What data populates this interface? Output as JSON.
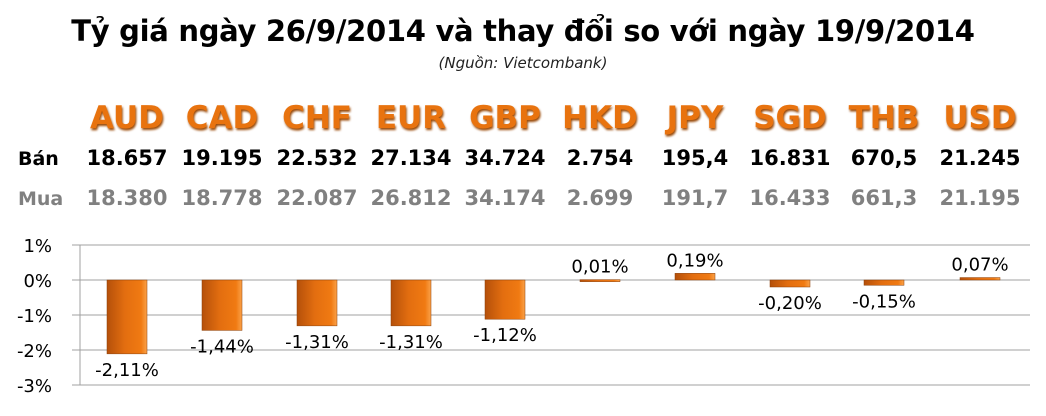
{
  "title": "Tỷ giá ngày 26/9/2014 và thay đổi so với ngày 19/9/2014",
  "source": "(Nguồn: Vietcombank)",
  "row_labels": {
    "sell": "Bán",
    "buy": "Mua"
  },
  "currencies": [
    "AUD",
    "CAD",
    "CHF",
    "EUR",
    "GBP",
    "HKD",
    "JPY",
    "SGD",
    "THB",
    "USD"
  ],
  "sell": [
    "18.657",
    "19.195",
    "22.532",
    "27.134",
    "34.724",
    "2.754",
    "195,4",
    "16.831",
    "670,5",
    "21.245"
  ],
  "buy": [
    "18.380",
    "18.778",
    "22.087",
    "26.812",
    "34.174",
    "2.699",
    "191,7",
    "16.433",
    "661,3",
    "21.195"
  ],
  "colors": {
    "accent": "#e8730f",
    "bar": "#e06d10",
    "grid": "#a0a0a0"
  },
  "chart_data": {
    "type": "bar",
    "categories": [
      "AUD",
      "CAD",
      "CHF",
      "EUR",
      "GBP",
      "HKD",
      "JPY",
      "SGD",
      "THB",
      "USD"
    ],
    "values": [
      -2.11,
      -1.44,
      -1.31,
      -1.31,
      -1.12,
      0.01,
      0.19,
      -0.2,
      -0.15,
      0.07
    ],
    "data_labels": [
      "-2,11%",
      "-1,44%",
      "-1,31%",
      "-1,31%",
      "-1,12%",
      "0,01%",
      "0,19%",
      "-0,20%",
      "-0,15%",
      "0,07%"
    ],
    "ylim": [
      -3,
      1
    ],
    "yticks": [
      "1%",
      "0%",
      "-1%",
      "-2%",
      "-3%"
    ],
    "ytick_values": [
      1,
      0,
      -1,
      -2,
      -3
    ],
    "grid": true
  }
}
